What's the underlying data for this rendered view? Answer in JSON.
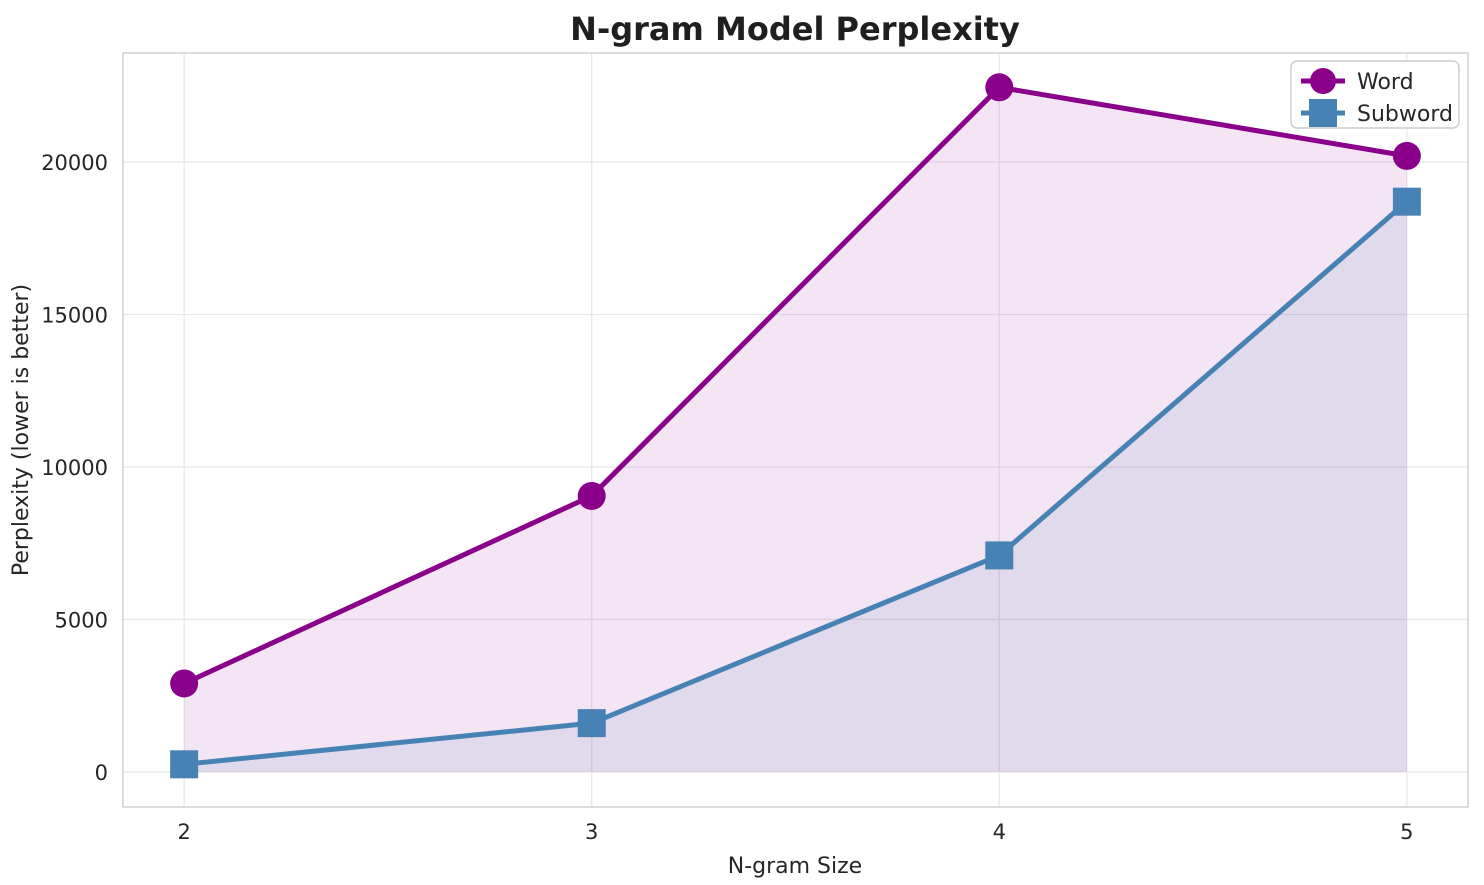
{
  "chart_data": {
    "type": "line",
    "title": "N-gram Model Perplexity",
    "xlabel": "N-gram Size",
    "ylabel": "Perplexity (lower is better)",
    "x": [
      2,
      3,
      4,
      5
    ],
    "xticklabels": [
      "2",
      "3",
      "4",
      "5"
    ],
    "yticks": [
      0,
      5000,
      10000,
      15000,
      20000
    ],
    "yticklabels": [
      "0",
      "5000",
      "10000",
      "15000",
      "20000"
    ],
    "xlim": [
      1.85,
      5.15
    ],
    "ylim": [
      -1150,
      23575
    ],
    "grid": true,
    "legend_position": "upper right",
    "series": [
      {
        "name": "Word",
        "values": [
          2900,
          9050,
          22450,
          20200
        ],
        "color": "#8B008B",
        "marker": "circle",
        "fill_baseline": 0,
        "fill_alpha": 0.1
      },
      {
        "name": "Subword",
        "values": [
          250,
          1600,
          7100,
          18700
        ],
        "color": "#4682B4",
        "marker": "square",
        "fill_baseline": 0,
        "fill_alpha": 0.1
      }
    ],
    "colors": {
      "background": "#ffffff",
      "grid": "#e8e8e8",
      "spine": "#cccccc",
      "text": "#262626"
    }
  }
}
